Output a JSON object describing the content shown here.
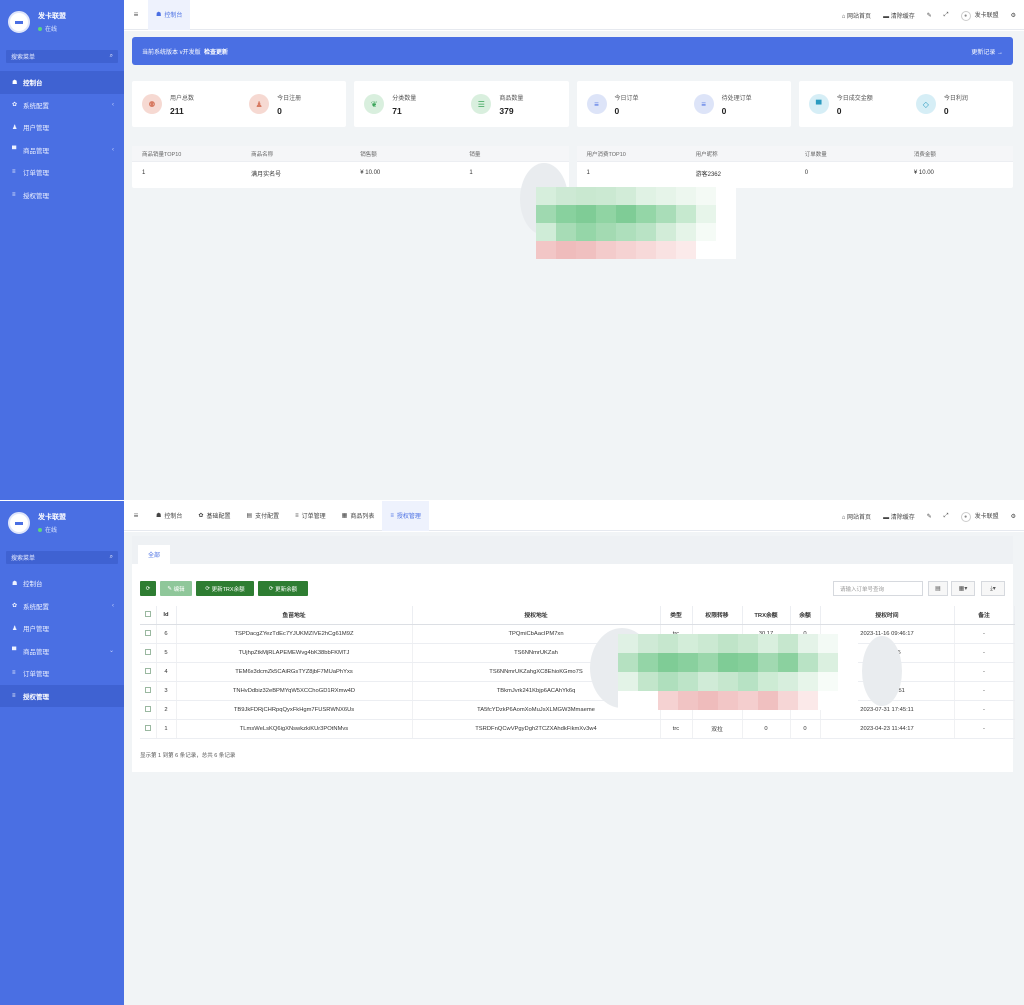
{
  "brand": {
    "name": "发卡联盟",
    "status": "在线"
  },
  "sidebar": {
    "search_label": "搜索菜单",
    "items": [
      {
        "icon": "dashboard-icon",
        "glyph": "☗",
        "label": "控制台"
      },
      {
        "icon": "gear-icon",
        "glyph": "✿",
        "label": "系统配置",
        "chevron": "‹"
      },
      {
        "icon": "user-icon",
        "glyph": "♟",
        "label": "用户管理"
      },
      {
        "icon": "cart-icon",
        "glyph": "▀",
        "label": "商品管理",
        "chevron": "‹"
      },
      {
        "icon": "list-icon",
        "glyph": "≡",
        "label": "订单管理"
      },
      {
        "icon": "list-icon",
        "glyph": "≡",
        "label": "授权管理"
      }
    ]
  },
  "topbar": {
    "home_label": "网站首页",
    "clear_cache_label": "清除缓存",
    "user_label": "发卡联盟"
  },
  "screen1": {
    "active_tab": "控制台",
    "banner": {
      "text": "当前系统版本 v开发版",
      "check": "检查更新",
      "changelog": "更新记录 →"
    },
    "stats": [
      {
        "label": "用户总数",
        "value": "211",
        "icon": "users-icon",
        "color": "#f6d9d2",
        "fg": "#d77b63",
        "glyph": "⚉"
      },
      {
        "label": "今日注册",
        "value": "0",
        "icon": "user-add-icon",
        "color": "#f6d9d2",
        "fg": "#d77b63",
        "glyph": "♟"
      },
      {
        "label": "分类数量",
        "value": "71",
        "icon": "leaf-icon",
        "color": "#d9efde",
        "fg": "#3ba55a",
        "glyph": "❦"
      },
      {
        "label": "商品数量",
        "value": "379",
        "icon": "list-icon",
        "color": "#d9efde",
        "fg": "#3ba55a",
        "glyph": "☰"
      },
      {
        "label": "今日订单",
        "value": "0",
        "icon": "order-icon",
        "color": "#dde4f8",
        "fg": "#4a6fe3",
        "glyph": "≡"
      },
      {
        "label": "待处理订单",
        "value": "0",
        "icon": "pending-icon",
        "color": "#dde4f8",
        "fg": "#4a6fe3",
        "glyph": "≡"
      },
      {
        "label": "今日成交金额",
        "value": "0",
        "icon": "cart-icon",
        "color": "#d6eef6",
        "fg": "#2a9bc0",
        "glyph": "▀"
      },
      {
        "label": "今日利润",
        "value": "0",
        "icon": "diamond-icon",
        "color": "#d6eef6",
        "fg": "#2a9bc0",
        "glyph": "◇"
      }
    ],
    "goods_rank": {
      "headers": [
        "商品销量TOP10",
        "商品名称",
        "销售额",
        "销量"
      ],
      "rows": [
        [
          "1",
          "满月实名号",
          "¥ 10.00",
          "1"
        ]
      ]
    },
    "user_rank": {
      "headers": [
        "用户消费TOP10",
        "用户昵称",
        "订单数量",
        "消费金额"
      ],
      "rows": [
        [
          "1",
          "游客2362",
          "0",
          "¥ 10.00"
        ]
      ]
    }
  },
  "screen2": {
    "tabs": [
      {
        "label": "控制台",
        "icon": "dashboard-icon",
        "glyph": "☗"
      },
      {
        "label": "基础配置",
        "icon": "gear-icon",
        "glyph": "✿"
      },
      {
        "label": "支付配置",
        "icon": "pay-icon",
        "glyph": "▤"
      },
      {
        "label": "订单管理",
        "icon": "list-icon",
        "glyph": "≡"
      },
      {
        "label": "商品列表",
        "icon": "grid-icon",
        "glyph": "▦"
      },
      {
        "label": "授权管理",
        "icon": "list-icon",
        "glyph": "≡"
      }
    ],
    "sub_tab": "全部",
    "buttons": {
      "edit": "编辑",
      "update_trx": "更新TRX余额",
      "update_balance": "更新余额"
    },
    "search_placeholder": "请输入订单号查询",
    "columns": [
      "Id",
      "鱼苗地址",
      "授权地址",
      "类型",
      "权限转移",
      "TRX余额",
      "余额",
      "授权时间",
      "备注"
    ],
    "rows": [
      {
        "id": "6",
        "addr": "TSPDacgZYezTdEc7YJUKMZIVE2hCg61M9Z",
        "auth": "TPQmiCbAacIPM7xn",
        "type": "trc",
        "perm": "",
        "trx": "30.17",
        "bal": "0",
        "time": "2023-11-16 09:46:17",
        "note": "-"
      },
      {
        "id": "5",
        "addr": "TUjhpZtkMjRLAPEMEWvg4bK38bbFKMTJ",
        "auth": "TS6NNmrUKZah",
        "type": "",
        "perm": "",
        "trx": "",
        "bal": "",
        "time": "9 22:13:65",
        "note": "-"
      },
      {
        "id": "4",
        "addr": "TEM6x3dcmZk5CAiRGsTYZ8jbF7MUaPhYxs",
        "auth": "TS6NNmrUKZahgXC8EhioKGmo7S",
        "type": "",
        "perm": "",
        "trx": "",
        "bal": "",
        "time": "21:39:48",
        "note": "-"
      },
      {
        "id": "3",
        "addr": "TNHvDdbiz32eBPMYqW5XCChoGD1RXmw4D",
        "auth": "TBkmJvrk241Kbjp6ACAhYk6q",
        "type": "",
        "perm": "",
        "trx": "",
        "bal": "",
        "time": "1-09 04:43:51",
        "note": "-"
      },
      {
        "id": "2",
        "addr": "TB9JkFDRjCHRpqQyxFkHgm7FUSRWNX6Us",
        "auth": "TA5fcYDzkP6AomXoMuJsXLMGW3Mmaeme",
        "type": "",
        "perm": "",
        "trx": "",
        "bal": "",
        "time": "2023-07-31 17:45:11",
        "note": "-"
      },
      {
        "id": "1",
        "addr": "TLmsWeLsKQ6igXNswkzkiKUr3POtNMvs",
        "auth": "TSRDFnQCwVPgyDgh2TCZXAhdkFikmXv3w4",
        "type": "trc",
        "perm": "双拉",
        "trx": "0",
        "bal": "0",
        "time": "2023-04-23 11:44:17",
        "note": "-"
      }
    ],
    "pager": "显示第 1 到第 6 条记录，总共 6 条记录"
  },
  "colors": {
    "primary": "#4a6fe3",
    "green_btn": "#2e7d32",
    "disabled_btn": "#8fc79a"
  }
}
